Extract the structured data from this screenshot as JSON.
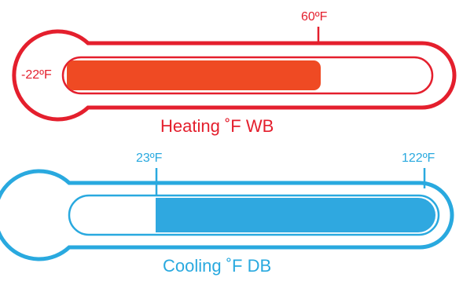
{
  "heating": {
    "label_min": "-22ºF",
    "label_max": "60ºF",
    "title": "Heating ˚F WB",
    "color": "#e41f2d",
    "fill_color": "#ef4a23",
    "fill_fraction": 0.62
  },
  "cooling": {
    "label_min": "23ºF",
    "label_max": "122ºF",
    "title": "Cooling ˚F DB",
    "color": "#29a9df",
    "fill_color": "#2fa8e0",
    "fill_fraction_start": 0.24,
    "fill_fraction_end": 1.0
  }
}
